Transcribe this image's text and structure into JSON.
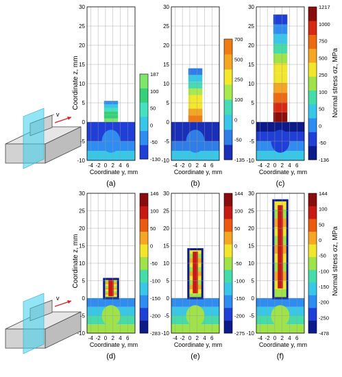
{
  "figure": {
    "y_axis_label": "Coordinate z, mm",
    "x_axis_label": "Coordinate y, mm",
    "colorbar_label_top": "Normal stress σz, MPa",
    "colorbar_label_bottom": "Normal stress σz, MPa",
    "velocity_label": "v",
    "panel_letters": [
      "(a)",
      "(b)",
      "(c)",
      "(d)",
      "(e)",
      "(f)"
    ]
  },
  "chart_data": [
    {
      "id": "a",
      "type": "heatmap",
      "title": "",
      "xlabel": "Coordinate y, mm",
      "ylabel": "Coordinate z, mm",
      "xlim": [
        -5,
        8
      ],
      "ylim": [
        -10,
        30
      ],
      "xticks": [
        -4,
        -2,
        0,
        2,
        4,
        6
      ],
      "yticks": [
        -10,
        -5,
        0,
        5,
        10,
        15,
        20,
        25,
        30
      ],
      "grid": true,
      "wall_height_mm": 5.5,
      "wall_y_range_mm": [
        0,
        3
      ],
      "colorbar": {
        "ticks": [
          "187",
          "100",
          "50",
          "0",
          "-50",
          "-130"
        ],
        "min": -130,
        "max": 187,
        "colors": [
          "#1f3fd6",
          "#2f8cf0",
          "#39c7e8",
          "#45e2c2",
          "#35d07a",
          "#7ee66a"
        ]
      }
    },
    {
      "id": "b",
      "type": "heatmap",
      "title": "",
      "xlabel": "Coordinate y, mm",
      "ylabel": "",
      "xlim": [
        -5,
        8
      ],
      "ylim": [
        -10,
        30
      ],
      "xticks": [
        -4,
        -2,
        0,
        2,
        4,
        6
      ],
      "yticks": [
        -10,
        -5,
        0,
        5,
        10,
        15,
        20,
        25,
        30
      ],
      "grid": true,
      "wall_height_mm": 14,
      "wall_y_range_mm": [
        0,
        3
      ],
      "colorbar": {
        "ticks": [
          "700",
          "500",
          "250",
          "100",
          "0",
          "-50",
          "-135"
        ],
        "min": -135,
        "max": 700,
        "colors": [
          "#1a2fb8",
          "#2f7ee8",
          "#39c7e8",
          "#47dcb8",
          "#a8ea4e",
          "#f3e92a",
          "#f5a623",
          "#f07d14"
        ]
      }
    },
    {
      "id": "c",
      "type": "heatmap",
      "title": "",
      "xlabel": "Coordinate y, mm",
      "ylabel": "Normal stress σz, MPa",
      "xlim": [
        -5,
        8
      ],
      "ylim": [
        -10,
        30
      ],
      "xticks": [
        -4,
        -2,
        0,
        2,
        4,
        6
      ],
      "yticks": [
        -10,
        -5,
        0,
        5,
        10,
        15,
        20,
        25,
        30
      ],
      "grid": true,
      "wall_height_mm": 28,
      "wall_y_range_mm": [
        0,
        3
      ],
      "colorbar": {
        "ticks": [
          "1217",
          "1000",
          "750",
          "500",
          "250",
          "100",
          "50",
          "0",
          "-50",
          "-136"
        ],
        "min": -136,
        "max": 1217,
        "colors": [
          "#0c1a8a",
          "#1f3fd6",
          "#2f8cf0",
          "#39c7e8",
          "#45dcaa",
          "#9fe24a",
          "#f2e62c",
          "#f5a623",
          "#ec6a12",
          "#d62914",
          "#8a0d0d"
        ]
      }
    },
    {
      "id": "d",
      "type": "heatmap",
      "title": "",
      "xlabel": "Coordinate y, mm",
      "ylabel": "Coordinate z, mm",
      "xlim": [
        -5,
        8
      ],
      "ylim": [
        -10,
        30
      ],
      "xticks": [
        -4,
        -2,
        0,
        2,
        4,
        6
      ],
      "yticks": [
        -10,
        -5,
        0,
        5,
        10,
        15,
        20,
        25,
        30
      ],
      "grid": true,
      "wall_height_mm": 5.5,
      "wall_y_range_mm": [
        0,
        3
      ],
      "colorbar": {
        "ticks": [
          "146",
          "100",
          "50",
          "0",
          "-50",
          "-100",
          "-150",
          "-200",
          "-283"
        ],
        "min": -283,
        "max": 146,
        "colors": [
          "#0c1a8a",
          "#1f3fd6",
          "#2f8cf0",
          "#39c7e8",
          "#45dcaa",
          "#9fe24a",
          "#f2e62c",
          "#f5a623",
          "#ec5a12",
          "#c81a14",
          "#8a0d0d"
        ]
      }
    },
    {
      "id": "e",
      "type": "heatmap",
      "title": "",
      "xlabel": "Coordinate y, mm",
      "ylabel": "",
      "xlim": [
        -5,
        8
      ],
      "ylim": [
        -10,
        30
      ],
      "xticks": [
        -4,
        -2,
        0,
        2,
        4,
        6
      ],
      "yticks": [
        -10,
        -5,
        0,
        5,
        10,
        15,
        20,
        25,
        30
      ],
      "grid": true,
      "wall_height_mm": 14,
      "wall_y_range_mm": [
        0,
        3
      ],
      "colorbar": {
        "ticks": [
          "144",
          "100",
          "50",
          "0",
          "-50",
          "-100",
          "-150",
          "-200",
          "-275"
        ],
        "min": -275,
        "max": 144,
        "colors": [
          "#0c1a8a",
          "#1f3fd6",
          "#2f8cf0",
          "#39c7e8",
          "#45dcaa",
          "#9fe24a",
          "#f2e62c",
          "#f5a623",
          "#ec5a12",
          "#c81a14",
          "#8a0d0d"
        ]
      }
    },
    {
      "id": "f",
      "type": "heatmap",
      "title": "",
      "xlabel": "Coordinate y, mm",
      "ylabel": "Normal stress σz, MPa",
      "xlim": [
        -5,
        8
      ],
      "ylim": [
        -10,
        30
      ],
      "xticks": [
        -4,
        -2,
        0,
        2,
        4,
        6
      ],
      "yticks": [
        -10,
        -5,
        0,
        5,
        10,
        15,
        20,
        25,
        30
      ],
      "grid": true,
      "wall_height_mm": 28,
      "wall_y_range_mm": [
        0,
        3
      ],
      "colorbar": {
        "ticks": [
          "144",
          "100",
          "50",
          "0",
          "-50",
          "-100",
          "-150",
          "-200",
          "-250",
          "-478"
        ],
        "min": -478,
        "max": 144,
        "colors": [
          "#0c1a8a",
          "#1f3fd6",
          "#2f8cf0",
          "#39c7e8",
          "#45dcaa",
          "#9fe24a",
          "#f2e62c",
          "#f5a623",
          "#ec5a12",
          "#c81a14",
          "#8a0d0d"
        ]
      }
    }
  ]
}
